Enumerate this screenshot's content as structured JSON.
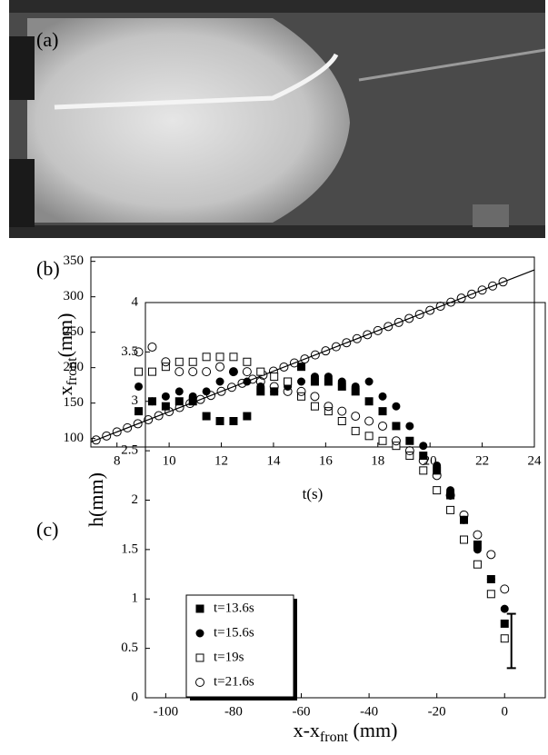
{
  "photo_label": "(a)",
  "chart_data": [
    {
      "type": "scatter",
      "panel_label": "(b)",
      "xlabel": "t(s)",
      "ylabel": {
        "main": "x",
        "sub": "front",
        "suffix": "(mm)"
      },
      "xlim": [
        7,
        24
      ],
      "xticks": [
        8,
        10,
        12,
        14,
        16,
        18,
        20,
        22,
        24
      ],
      "ylim": [
        88,
        356
      ],
      "yticks": [
        100,
        150,
        200,
        250,
        300,
        350
      ],
      "series": [
        {
          "marker": "open-circle",
          "color": "#000000",
          "x": [
            7.2,
            7.6,
            8.0,
            8.4,
            8.8,
            9.2,
            9.6,
            10.0,
            10.4,
            10.8,
            11.2,
            11.6,
            12.0,
            12.4,
            12.8,
            13.2,
            13.6,
            14.0,
            14.4,
            14.8,
            15.2,
            15.6,
            16.0,
            16.4,
            16.8,
            17.2,
            17.6,
            18.0,
            18.4,
            18.8,
            19.2,
            19.6,
            20.0,
            20.4,
            20.8,
            21.2,
            21.6,
            22.0,
            22.4,
            22.8
          ],
          "values": [
            97.9,
            103.6,
            109.3,
            115.1,
            120.8,
            126.5,
            132.2,
            137.9,
            143.7,
            149.4,
            155.1,
            160.8,
            166.5,
            172.3,
            178.0,
            183.7,
            189.4,
            195.1,
            200.9,
            206.6,
            212.3,
            218.0,
            223.7,
            229.5,
            235.2,
            240.9,
            246.6,
            252.3,
            258.1,
            263.8,
            269.5,
            275.2,
            280.9,
            286.7,
            292.4,
            298.1,
            303.8,
            309.5,
            315.3,
            321.0
          ]
        },
        {
          "marker": "line",
          "color": "#000000",
          "x": [
            7,
            24
          ],
          "values": [
            95,
            338
          ]
        }
      ]
    },
    {
      "type": "scatter",
      "panel_label": "(c)",
      "xlabel": {
        "main": "x-x",
        "sub": "front",
        "suffix": " (mm)"
      },
      "ylabel": "h(mm)",
      "xlim": [
        -106,
        12
      ],
      "xticks": [
        -100,
        -80,
        -60,
        -40,
        -20,
        0
      ],
      "ylim": [
        0,
        4
      ],
      "yticks": [
        0,
        0.5,
        1,
        1.5,
        2,
        2.5,
        3,
        3.5,
        4
      ],
      "series": [
        {
          "name": "t=13.6s",
          "marker": "filled-square",
          "color": "#000000",
          "x": [
            -108,
            -104,
            -100,
            -96,
            -92,
            -88,
            -84,
            -80,
            -76,
            -72,
            -68,
            -64,
            -60,
            -56,
            -52,
            -48,
            -44,
            -40,
            -36,
            -32,
            -28,
            -24,
            -20,
            -16,
            -12,
            -8,
            -4,
            0
          ],
          "values": [
            2.9,
            3.0,
            2.95,
            3.0,
            3.0,
            2.85,
            2.8,
            2.8,
            2.85,
            3.1,
            3.1,
            3.2,
            3.35,
            3.2,
            3.2,
            3.15,
            3.1,
            3.0,
            2.9,
            2.75,
            2.6,
            2.45,
            2.3,
            2.05,
            1.8,
            1.55,
            1.2,
            0.75
          ]
        },
        {
          "name": "t=15.6s",
          "marker": "filled-circle",
          "color": "#000000",
          "x": [
            -108,
            -104,
            -100,
            -96,
            -92,
            -88,
            -84,
            -80,
            -76,
            -72,
            -68,
            -64,
            -60,
            -56,
            -52,
            -48,
            -44,
            -40,
            -36,
            -32,
            -28,
            -24,
            -20,
            -16,
            -12,
            -8,
            -4,
            0
          ],
          "values": [
            3.15,
            3.0,
            3.05,
            3.1,
            3.05,
            3.1,
            3.2,
            3.3,
            3.2,
            3.15,
            3.1,
            3.15,
            3.2,
            3.25,
            3.25,
            3.2,
            3.15,
            3.2,
            3.05,
            2.95,
            2.75,
            2.55,
            2.35,
            2.1,
            1.8,
            1.5,
            1.2,
            0.9
          ]
        },
        {
          "name": "t=19s",
          "marker": "open-square",
          "color": "#000000",
          "x": [
            -108,
            -104,
            -100,
            -96,
            -92,
            -88,
            -84,
            -80,
            -76,
            -72,
            -68,
            -64,
            -60,
            -56,
            -52,
            -48,
            -44,
            -40,
            -36,
            -32,
            -28,
            -24,
            -20,
            -16,
            -12,
            -8,
            -4,
            0
          ],
          "values": [
            3.3,
            3.3,
            3.35,
            3.4,
            3.4,
            3.45,
            3.45,
            3.45,
            3.4,
            3.3,
            3.25,
            3.2,
            3.05,
            2.95,
            2.9,
            2.8,
            2.7,
            2.65,
            2.6,
            2.55,
            2.45,
            2.3,
            2.1,
            1.9,
            1.6,
            1.35,
            1.05,
            0.6
          ]
        },
        {
          "name": "t=21.6s",
          "marker": "open-circle",
          "color": "#000000",
          "x": [
            -108,
            -104,
            -100,
            -96,
            -92,
            -88,
            -84,
            -80,
            -76,
            -72,
            -68,
            -64,
            -60,
            -56,
            -52,
            -48,
            -44,
            -40,
            -36,
            -32,
            -28,
            -24,
            -20,
            -16,
            -12,
            -8,
            -4,
            0
          ],
          "values": [
            3.5,
            3.55,
            3.4,
            3.3,
            3.3,
            3.3,
            3.35,
            3.3,
            3.3,
            3.2,
            3.15,
            3.1,
            3.1,
            3.05,
            2.95,
            2.9,
            2.85,
            2.8,
            2.75,
            2.6,
            2.5,
            2.4,
            2.25,
            2.05,
            1.85,
            1.65,
            1.45,
            1.1
          ]
        }
      ],
      "error_bar": {
        "x": 2,
        "low": 0.3,
        "high": 0.85
      }
    }
  ]
}
